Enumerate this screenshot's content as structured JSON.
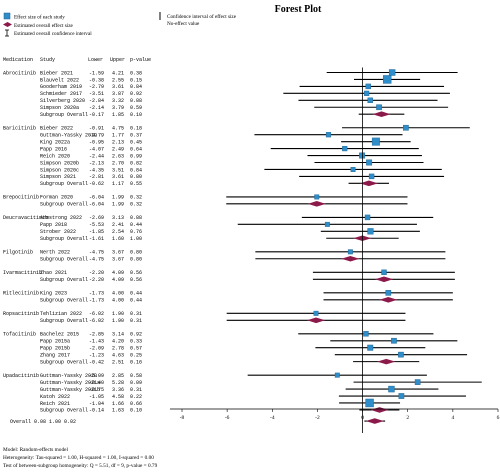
{
  "chart_data": {
    "type": "forest",
    "title": "Forest Plot",
    "legend": {
      "effect_size": "Effect size of each study",
      "estimated_overall": "Estimated overall effect size",
      "estimated_ci": "Estimated overall confidence interval",
      "ci_each": "Confidence interval of effect size",
      "no_effect": "No-effect value"
    },
    "columns": [
      "Medication",
      "Study",
      "Lower",
      "Upper",
      "p-value"
    ],
    "xlim": [
      -8,
      6
    ],
    "xticks": [
      -8,
      -6,
      -4,
      -2,
      0,
      2,
      4,
      6
    ],
    "null_value": 0,
    "groups": [
      {
        "medication": "Abrocitinib",
        "studies": [
          {
            "study": "Bieber 2021",
            "est": 1.31,
            "lower": -1.59,
            "upper": 4.21,
            "p": "0.38",
            "weight": 0.6
          },
          {
            "study": "Blauvelt 2022",
            "est": 1.09,
            "lower": -0.38,
            "upper": 2.55,
            "p": "0.15",
            "weight": 1.0
          },
          {
            "study": "Gooderham 2019",
            "est": 0.25,
            "lower": -2.79,
            "upper": 3.61,
            "p": "0.84",
            "weight": 0.4
          },
          {
            "study": "Schmieder 2017",
            "est": 0.18,
            "lower": -3.51,
            "upper": 3.87,
            "p": "0.92",
            "weight": 0.35
          },
          {
            "study": "Silverberg 2020",
            "est": 0.34,
            "lower": -2.84,
            "upper": 3.32,
            "p": "0.88",
            "weight": 0.4
          },
          {
            "study": "Simpson 2020a",
            "est": 0.73,
            "lower": -2.14,
            "upper": 3.79,
            "p": "0.59",
            "weight": 0.45
          }
        ],
        "subgroup": {
          "label": "Subgroup Overall",
          "lower": -0.17,
          "upper": 1.85,
          "p": "0.10",
          "est": 0.84
        }
      },
      {
        "medication": "Baricitinib",
        "studies": [
          {
            "study": "Bieber 2022",
            "est": 1.92,
            "lower": -0.91,
            "upper": 4.75,
            "p": "0.18",
            "weight": 0.45
          },
          {
            "study": "Guttman-Yassky 2019",
            "est": -1.51,
            "lower": -4.79,
            "upper": 1.77,
            "p": "0.37",
            "weight": 0.35
          },
          {
            "study": "King 2022a",
            "est": 0.59,
            "lower": -0.95,
            "upper": 2.13,
            "p": "0.45",
            "weight": 0.9
          },
          {
            "study": "Papp 2016",
            "est": -0.79,
            "lower": -4.07,
            "upper": 2.49,
            "p": "0.64",
            "weight": 0.35
          },
          {
            "study": "Reich 2020",
            "est": -0.02,
            "lower": -2.44,
            "upper": 2.63,
            "p": "0.99",
            "weight": 0.5
          },
          {
            "study": "Simpson 2020b",
            "est": 0.29,
            "lower": -2.13,
            "upper": 2.7,
            "p": "0.82",
            "weight": 0.5
          },
          {
            "study": "Simpson 2020c",
            "est": -0.42,
            "lower": -4.35,
            "upper": 3.51,
            "p": "0.84",
            "weight": 0.3
          },
          {
            "study": "Simpson 2021",
            "est": 0.4,
            "lower": -2.81,
            "upper": 3.61,
            "p": "0.80",
            "weight": 0.4
          }
        ],
        "subgroup": {
          "label": "Subgroup Overall",
          "lower": -0.62,
          "upper": 1.17,
          "p": "0.55",
          "est": 0.28
        }
      },
      {
        "medication": "Brepocitinib",
        "studies": [
          {
            "study": "Forman 2020",
            "est": -2.03,
            "lower": -6.04,
            "upper": 1.99,
            "p": "0.32",
            "weight": 0.3
          }
        ],
        "subgroup": {
          "label": "Subgroup Overall",
          "lower": -6.04,
          "upper": 1.99,
          "p": "0.32",
          "est": -2.03
        }
      },
      {
        "medication": "Deucravacitinib",
        "studies": [
          {
            "study": "Armstrong 2022",
            "est": 0.22,
            "lower": -2.69,
            "upper": 3.13,
            "p": "0.88",
            "weight": 0.4
          },
          {
            "study": "Papp 2018",
            "est": -1.56,
            "lower": -5.53,
            "upper": 2.41,
            "p": "0.44",
            "weight": 0.3
          },
          {
            "study": "Strober 2022",
            "est": 0.35,
            "lower": -1.85,
            "upper": 2.54,
            "p": "0.76",
            "weight": 0.55
          }
        ],
        "subgroup": {
          "label": "Subgroup Overall",
          "lower": -1.61,
          "upper": 1.6,
          "p": "1.00",
          "est": -0.01
        }
      },
      {
        "medication": "Filgotinib",
        "studies": [
          {
            "study": "Nerth 2022",
            "est": -0.54,
            "lower": -4.75,
            "upper": 3.67,
            "p": "0.80",
            "weight": 0.3
          }
        ],
        "subgroup": {
          "label": "Subgroup Overall",
          "lower": -4.75,
          "upper": 3.67,
          "p": "0.80",
          "est": -0.54
        }
      },
      {
        "medication": "Ivarmacitinib",
        "studies": [
          {
            "study": "Zhao 2021",
            "est": 0.95,
            "lower": -2.2,
            "upper": 4.09,
            "p": "0.56",
            "weight": 0.4
          }
        ],
        "subgroup": {
          "label": "Subgroup Overall",
          "lower": -2.2,
          "upper": 4.09,
          "p": "0.56",
          "est": 0.95
        }
      },
      {
        "medication": "Ritlecitinib",
        "studies": [
          {
            "study": "King 2023",
            "est": 1.14,
            "lower": -1.73,
            "upper": 4.0,
            "p": "0.44",
            "weight": 0.45
          }
        ],
        "subgroup": {
          "label": "Subgroup Overall",
          "lower": -1.73,
          "upper": 4.0,
          "p": "0.44",
          "est": 1.14
        }
      },
      {
        "medication": "Ropsacitinib",
        "studies": [
          {
            "study": "Tehlizian 2022",
            "est": -2.06,
            "lower": -6.02,
            "upper": 1.9,
            "p": "0.31",
            "weight": 0.3
          }
        ],
        "subgroup": {
          "label": "Subgroup Overall",
          "lower": -6.02,
          "upper": 1.9,
          "p": "0.31",
          "est": -2.06
        }
      },
      {
        "medication": "Tofacitinib",
        "studies": [
          {
            "study": "Bachelez 2015",
            "est": 0.15,
            "lower": -2.85,
            "upper": 3.14,
            "p": "0.92",
            "weight": 0.4
          },
          {
            "study": "Papp 2015a",
            "est": 1.39,
            "lower": -1.43,
            "upper": 4.2,
            "p": "0.33",
            "weight": 0.45
          },
          {
            "study": "Papp 2015b",
            "est": 0.34,
            "lower": -2.09,
            "upper": 2.78,
            "p": "0.57",
            "weight": 0.5
          },
          {
            "study": "Zhang 2017",
            "est": 1.7,
            "lower": -1.23,
            "upper": 4.63,
            "p": "0.25",
            "weight": 0.45
          }
        ],
        "subgroup": {
          "label": "Subgroup Overall",
          "lower": -0.42,
          "upper": 2.51,
          "p": "0.16",
          "est": 1.05
        }
      },
      {
        "medication": "Upadacitinib",
        "studies": [
          {
            "study": "Guttman-Yassky 2020",
            "est": -1.12,
            "lower": -5.09,
            "upper": 2.85,
            "p": "0.58",
            "weight": 0.3
          },
          {
            "study": "Guttman-Yassky 2021a",
            "est": 2.44,
            "lower": -0.4,
            "upper": 5.28,
            "p": "0.09",
            "weight": 0.45
          },
          {
            "study": "Guttman-Yassky 2021b",
            "est": 1.28,
            "lower": -0.75,
            "upper": 3.36,
            "p": "0.31",
            "weight": 0.6
          },
          {
            "study": "Katoh 2022",
            "est": 1.72,
            "lower": -1.05,
            "upper": 4.58,
            "p": "0.22",
            "weight": 0.45
          },
          {
            "study": "Reich 2021",
            "est": 0.31,
            "lower": -1.04,
            "upper": 1.66,
            "p": "0.66",
            "weight": 1.0
          }
        ],
        "subgroup": {
          "label": "Subgroup Overall",
          "lower": -0.14,
          "upper": 1.63,
          "p": "0.10",
          "est": 0.75
        }
      }
    ],
    "overall": {
      "label": "Overall",
      "lower": 0.08,
      "upper": 1.0,
      "p": "0.02",
      "est": 0.54
    },
    "footnotes": [
      "Model: Random-effects model",
      "Heterogeneity: Tau-squared = 1.00, H-squared = 1.00, I-squared = 0.00",
      "Test of between-subgroup homogeneity: Q = 5.51, df = 9, p-value = 0.79"
    ],
    "colors": {
      "square": "#2f8ec9",
      "diamond": "#8b1a4a",
      "line": "#000000"
    }
  }
}
